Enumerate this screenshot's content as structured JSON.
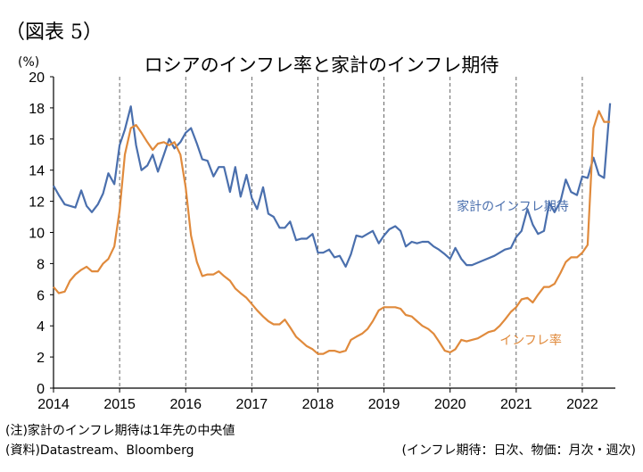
{
  "figure_label": "（図表 5）",
  "notes": {
    "note1": "(注)家計のインフレ期待は1年先の中央値",
    "note2": "(資料)Datastream、Bloomberg",
    "note3": "(インフレ期待：日次、物価：月次・週次)"
  },
  "chart_data": {
    "type": "line",
    "title": "ロシアのインフレ率と家計のインフレ期待",
    "ylabel": "(%)",
    "xlabel": "",
    "ylim": [
      0,
      20
    ],
    "xlim": [
      2014,
      2022.5
    ],
    "yticks": [
      "0",
      "2",
      "4",
      "6",
      "8",
      "10",
      "12",
      "14",
      "16",
      "18",
      "20"
    ],
    "xticks": [
      "2014",
      "2015",
      "2016",
      "2017",
      "2018",
      "2019",
      "2020",
      "2021",
      "2022"
    ],
    "grid": "vertical dashed",
    "colors": {
      "expectations": "#4a6fad",
      "inflation": "#e08a3c"
    },
    "series": [
      {
        "name": "家計のインフレ期待",
        "x": [
          2014.0,
          2014.08,
          2014.17,
          2014.33,
          2014.42,
          2014.5,
          2014.58,
          2014.67,
          2014.75,
          2014.83,
          2014.92,
          2015.0,
          2015.08,
          2015.17,
          2015.25,
          2015.33,
          2015.42,
          2015.5,
          2015.58,
          2015.67,
          2015.75,
          2015.83,
          2015.92,
          2016.0,
          2016.08,
          2016.17,
          2016.25,
          2016.33,
          2016.42,
          2016.5,
          2016.58,
          2016.67,
          2016.75,
          2016.83,
          2016.92,
          2017.0,
          2017.08,
          2017.17,
          2017.25,
          2017.33,
          2017.42,
          2017.5,
          2017.58,
          2017.67,
          2017.75,
          2017.83,
          2017.92,
          2018.0,
          2018.08,
          2018.17,
          2018.25,
          2018.33,
          2018.42,
          2018.5,
          2018.58,
          2018.67,
          2018.75,
          2018.83,
          2018.92,
          2019.0,
          2019.08,
          2019.17,
          2019.25,
          2019.33,
          2019.42,
          2019.5,
          2019.58,
          2019.67,
          2019.75,
          2019.83,
          2019.92,
          2020.0,
          2020.08,
          2020.17,
          2020.25,
          2020.33,
          2020.5,
          2020.67,
          2020.75,
          2020.83,
          2020.92,
          2021.0,
          2021.08,
          2021.17,
          2021.25,
          2021.33,
          2021.42,
          2021.5,
          2021.58,
          2021.67,
          2021.75,
          2021.83,
          2021.92,
          2022.0,
          2022.08,
          2022.17,
          2022.25,
          2022.33,
          2022.42
        ],
        "values": [
          13.0,
          12.4,
          11.8,
          11.6,
          12.7,
          11.7,
          11.3,
          11.8,
          12.5,
          13.8,
          13.1,
          15.6,
          16.6,
          18.1,
          15.6,
          14.0,
          14.3,
          15.0,
          13.9,
          15.0,
          16.0,
          15.4,
          15.8,
          16.4,
          16.7,
          15.7,
          14.7,
          14.6,
          13.6,
          14.2,
          14.2,
          12.6,
          14.2,
          12.3,
          13.7,
          12.2,
          11.5,
          12.9,
          11.2,
          11.0,
          10.3,
          10.3,
          10.7,
          9.5,
          9.6,
          9.6,
          9.9,
          8.7,
          8.7,
          8.9,
          8.4,
          8.5,
          7.8,
          8.6,
          9.8,
          9.7,
          9.9,
          10.1,
          9.3,
          9.8,
          10.2,
          10.4,
          10.1,
          9.1,
          9.4,
          9.3,
          9.4,
          9.4,
          9.1,
          8.9,
          8.6,
          8.3,
          9.0,
          8.3,
          7.9,
          7.9,
          8.2,
          8.5,
          8.7,
          8.9,
          9.0,
          9.7,
          10.1,
          11.5,
          10.5,
          9.9,
          10.1,
          11.9,
          11.3,
          12.0,
          13.4,
          12.6,
          12.4,
          13.6,
          13.5,
          14.8,
          13.7,
          13.5,
          18.3
        ]
      },
      {
        "name": "インフレ率",
        "x": [
          2014.0,
          2014.08,
          2014.17,
          2014.25,
          2014.33,
          2014.42,
          2014.5,
          2014.58,
          2014.67,
          2014.75,
          2014.83,
          2014.92,
          2015.0,
          2015.08,
          2015.17,
          2015.25,
          2015.33,
          2015.42,
          2015.5,
          2015.58,
          2015.67,
          2015.75,
          2015.83,
          2015.92,
          2016.0,
          2016.08,
          2016.17,
          2016.25,
          2016.33,
          2016.42,
          2016.5,
          2016.58,
          2016.67,
          2016.75,
          2016.83,
          2016.92,
          2017.0,
          2017.08,
          2017.17,
          2017.25,
          2017.33,
          2017.42,
          2017.5,
          2017.58,
          2017.67,
          2017.75,
          2017.83,
          2017.92,
          2018.0,
          2018.08,
          2018.17,
          2018.25,
          2018.33,
          2018.42,
          2018.5,
          2018.58,
          2018.67,
          2018.75,
          2018.83,
          2018.92,
          2019.0,
          2019.08,
          2019.17,
          2019.25,
          2019.33,
          2019.42,
          2019.5,
          2019.58,
          2019.67,
          2019.75,
          2019.83,
          2019.92,
          2020.0,
          2020.08,
          2020.17,
          2020.25,
          2020.33,
          2020.42,
          2020.5,
          2020.58,
          2020.67,
          2020.75,
          2020.83,
          2020.92,
          2021.0,
          2021.08,
          2021.17,
          2021.25,
          2021.33,
          2021.42,
          2021.5,
          2021.58,
          2021.67,
          2021.75,
          2021.83,
          2021.92,
          2022.0,
          2022.08,
          2022.17,
          2022.25,
          2022.33,
          2022.42
        ],
        "values": [
          6.5,
          6.1,
          6.2,
          6.9,
          7.3,
          7.6,
          7.8,
          7.5,
          7.5,
          8.0,
          8.3,
          9.1,
          11.4,
          15.0,
          16.7,
          16.9,
          16.4,
          15.8,
          15.3,
          15.7,
          15.8,
          15.6,
          15.8,
          15.0,
          12.9,
          9.8,
          8.1,
          7.2,
          7.3,
          7.3,
          7.5,
          7.2,
          6.9,
          6.4,
          6.1,
          5.8,
          5.4,
          5.0,
          4.6,
          4.3,
          4.1,
          4.1,
          4.4,
          3.9,
          3.3,
          3.0,
          2.7,
          2.5,
          2.2,
          2.2,
          2.4,
          2.4,
          2.3,
          2.4,
          3.1,
          3.3,
          3.5,
          3.8,
          4.3,
          5.0,
          5.2,
          5.2,
          5.2,
          5.1,
          4.7,
          4.6,
          4.3,
          4.0,
          3.8,
          3.5,
          3.0,
          2.4,
          2.3,
          2.5,
          3.1,
          3.0,
          3.1,
          3.2,
          3.4,
          3.6,
          3.7,
          4.0,
          4.4,
          4.9,
          5.2,
          5.7,
          5.8,
          5.5,
          6.0,
          6.5,
          6.5,
          6.7,
          7.4,
          8.1,
          8.4,
          8.4,
          8.7,
          9.2,
          16.7,
          17.8,
          17.1,
          17.1
        ]
      }
    ],
    "annotations": [
      {
        "text": "家計のインフレ期待",
        "x": 2020.1,
        "y": 11.4,
        "series": 0
      },
      {
        "text": "インフレ率",
        "x": 2020.75,
        "y": 2.8,
        "series": 1
      }
    ]
  }
}
